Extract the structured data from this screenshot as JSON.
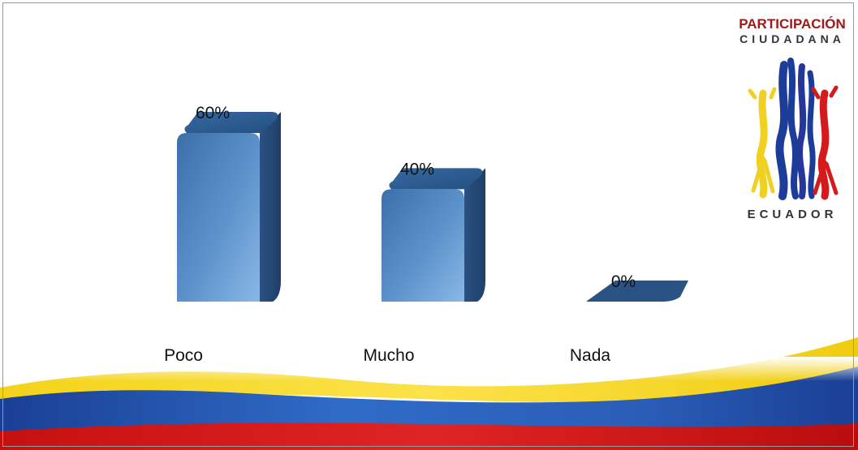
{
  "chart_data": {
    "type": "bar",
    "title": "",
    "categories": [
      "Poco",
      "Mucho",
      "Nada"
    ],
    "values": [
      60,
      40,
      0
    ],
    "value_labels": [
      "60%",
      "40%",
      "0%"
    ],
    "ylim": [
      0,
      100
    ],
    "xlabel": "",
    "ylabel": "",
    "grid": false,
    "legend": "none",
    "bar_color": "#4a7fb5",
    "bar_dark_color": "#2c5585"
  },
  "logo": {
    "line1": "PARTICIPACIÓN",
    "line2": "CIUDADANA",
    "line3": "ECUADOR",
    "colors": [
      "#f2d21b",
      "#1f3f9f",
      "#d61a1a"
    ]
  },
  "flag_colors": {
    "yellow": "#f5d90f",
    "blue": "#1d4fa8",
    "red": "#d01515"
  }
}
